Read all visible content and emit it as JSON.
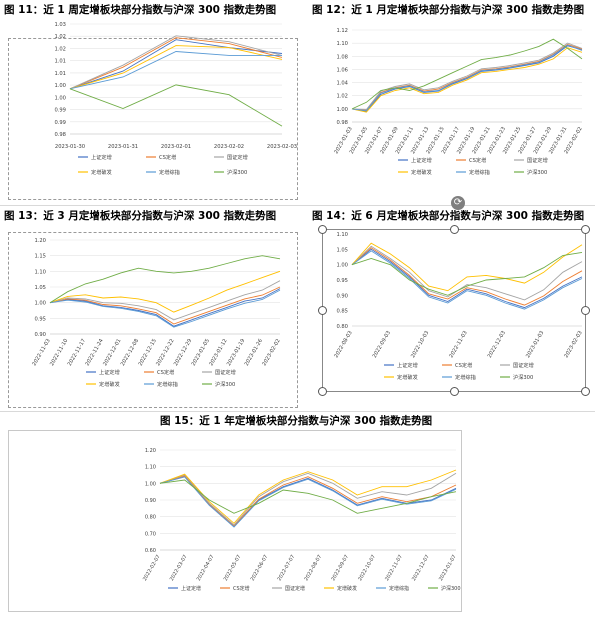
{
  "legend_labels": [
    "上证定增",
    "CS定增",
    "国证定增",
    "定增破发",
    "定增综指",
    "沪深300"
  ],
  "series_colors": [
    "#4472c4",
    "#ed7d31",
    "#a5a5a5",
    "#ffc000",
    "#5b9bd5",
    "#70ad47"
  ],
  "chart_data": [
    {
      "id": "fig11",
      "type": "line",
      "title": "图 11：近 1 周定增板块部分指数与沪深 300 指数走势图",
      "x": [
        "2023-01-30",
        "2023-01-31",
        "2023-02-01",
        "2023-02-02",
        "2023-02-03"
      ],
      "xlabels": [
        "2023-01-30",
        "2023-01-31",
        "2023-02-01",
        "2023-02-02",
        "2023-02-03"
      ],
      "yticks": [
        "1.03",
        "1.02",
        "1.02",
        "1.01",
        "1.01",
        "1.00",
        "1.00",
        "0.99",
        "0.99",
        "0.98"
      ],
      "ylim": [
        0.977,
        1.033
      ],
      "series": [
        {
          "name": "上证定增",
          "values": [
            1.0,
            1.009,
            1.025,
            1.021,
            1.018
          ]
        },
        {
          "name": "CS定增",
          "values": [
            1.0,
            1.011,
            1.026,
            1.023,
            1.016
          ]
        },
        {
          "name": "国证定增",
          "values": [
            1.0,
            1.012,
            1.027,
            1.024,
            1.017
          ]
        },
        {
          "name": "定增破发",
          "values": [
            1.0,
            1.008,
            1.022,
            1.021,
            1.015
          ]
        },
        {
          "name": "定增综指",
          "values": [
            1.0,
            1.006,
            1.019,
            1.017,
            1.017
          ]
        },
        {
          "name": "沪深300",
          "values": [
            1.0,
            0.99,
            1.002,
            0.997,
            0.981
          ]
        }
      ]
    },
    {
      "id": "fig12",
      "type": "line",
      "title": "图 12：近 1 月定增板块部分指数与沪深 300 指数走势图",
      "x": [
        "2023-01-03",
        "2023-01-05",
        "2023-01-07",
        "2023-01-09",
        "2023-01-11",
        "2023-01-13",
        "2023-01-15",
        "2023-01-17",
        "2023-01-19",
        "2023-01-21",
        "2023-01-23",
        "2023-01-25",
        "2023-01-27",
        "2023-01-29",
        "2023-01-31",
        "2023-02-02",
        "2023-02-03"
      ],
      "xlabels": [
        "2023-01-03",
        "2023-01-05",
        "2023-01-07",
        "2023-01-09",
        "2023-01-11",
        "2023-01-13",
        "2023-01-15",
        "2023-01-17",
        "2023-01-19",
        "2023-01-21",
        "2023-01-23",
        "2023-01-25",
        "2023-01-27",
        "2023-01-29",
        "2023-01-31",
        "2023-02-02"
      ],
      "yticks": [
        "1.12",
        "1.10",
        "1.08",
        "1.06",
        "1.04",
        "1.02",
        "1.00",
        "0.98"
      ],
      "ylim": [
        0.98,
        1.12
      ],
      "series": [
        {
          "name": "上证定增",
          "values": [
            1.0,
            0.996,
            1.022,
            1.03,
            1.034,
            1.025,
            1.027,
            1.038,
            1.046,
            1.057,
            1.059,
            1.062,
            1.066,
            1.07,
            1.08,
            1.096,
            1.09
          ]
        },
        {
          "name": "CS定增",
          "values": [
            1.0,
            0.998,
            1.025,
            1.032,
            1.036,
            1.027,
            1.03,
            1.04,
            1.048,
            1.059,
            1.061,
            1.064,
            1.068,
            1.072,
            1.083,
            1.098,
            1.091
          ]
        },
        {
          "name": "国证定增",
          "values": [
            1.0,
            0.999,
            1.027,
            1.034,
            1.038,
            1.029,
            1.032,
            1.042,
            1.05,
            1.061,
            1.063,
            1.066,
            1.07,
            1.074,
            1.085,
            1.1,
            1.092
          ]
        },
        {
          "name": "定增破发",
          "values": [
            1.0,
            0.995,
            1.02,
            1.028,
            1.032,
            1.023,
            1.025,
            1.036,
            1.044,
            1.055,
            1.057,
            1.06,
            1.063,
            1.068,
            1.076,
            1.093,
            1.086
          ]
        },
        {
          "name": "定增综指",
          "values": [
            1.0,
            0.997,
            1.024,
            1.031,
            1.035,
            1.026,
            1.028,
            1.039,
            1.047,
            1.058,
            1.06,
            1.063,
            1.067,
            1.071,
            1.082,
            1.097,
            1.089
          ]
        },
        {
          "name": "沪深300",
          "values": [
            1.0,
            1.01,
            1.028,
            1.032,
            1.028,
            1.035,
            1.045,
            1.055,
            1.065,
            1.075,
            1.078,
            1.082,
            1.088,
            1.095,
            1.106,
            1.092,
            1.076
          ]
        }
      ]
    },
    {
      "id": "fig13",
      "type": "line",
      "title": "图 13：近 3 月定增板块部分指数与沪深 300 指数走势图",
      "x": [
        "2022-11-03",
        "2022-11-10",
        "2022-11-17",
        "2022-11-24",
        "2022-12-01",
        "2022-12-08",
        "2022-12-15",
        "2022-12-22",
        "2022-12-29",
        "2023-01-05",
        "2023-01-12",
        "2023-01-19",
        "2023-01-26",
        "2023-02-02"
      ],
      "xlabels": [
        "2022-11-03",
        "2022-11-10",
        "2022-11-17",
        "2022-11-24",
        "2022-12-01",
        "2022-12-08",
        "2022-12-15",
        "2022-12-22",
        "2022-12-29",
        "2023-01-05",
        "2023-01-12",
        "2023-01-19",
        "2023-01-26",
        "2023-02-02"
      ],
      "yticks": [
        "1.20",
        "1.15",
        "1.10",
        "1.05",
        "1.00",
        "0.95",
        "0.90"
      ],
      "ylim": [
        0.9,
        1.2
      ],
      "series": [
        {
          "name": "上证定增",
          "values": [
            1.0,
            1.01,
            1.005,
            0.99,
            0.985,
            0.975,
            0.962,
            0.925,
            0.945,
            0.965,
            0.985,
            1.005,
            1.015,
            1.045
          ]
        },
        {
          "name": "CS定增",
          "values": [
            1.0,
            1.012,
            1.008,
            0.994,
            0.99,
            0.98,
            0.968,
            0.932,
            0.952,
            0.972,
            0.992,
            1.012,
            1.024,
            1.05
          ]
        },
        {
          "name": "国证定增",
          "values": [
            1.0,
            1.015,
            1.012,
            1.0,
            0.998,
            0.99,
            0.978,
            0.945,
            0.965,
            0.985,
            1.005,
            1.025,
            1.04,
            1.07
          ]
        },
        {
          "name": "定增破发",
          "values": [
            1.0,
            1.02,
            1.025,
            1.015,
            1.018,
            1.012,
            1.0,
            0.97,
            0.992,
            1.015,
            1.04,
            1.06,
            1.08,
            1.1
          ]
        },
        {
          "name": "定增综指",
          "values": [
            1.0,
            1.008,
            1.002,
            0.988,
            0.982,
            0.972,
            0.958,
            0.922,
            0.94,
            0.96,
            0.98,
            0.998,
            1.01,
            1.04
          ]
        },
        {
          "name": "沪深300",
          "values": [
            1.0,
            1.035,
            1.06,
            1.075,
            1.095,
            1.11,
            1.1,
            1.095,
            1.1,
            1.11,
            1.125,
            1.14,
            1.15,
            1.14
          ]
        }
      ]
    },
    {
      "id": "fig14",
      "type": "line",
      "title": "图 14：近 6 月定增板块部分指数与沪深 300 指数走势图",
      "x": [
        "2022-08-03",
        "2022-08-20",
        "2022-09-03",
        "2022-09-20",
        "2022-10-03",
        "2022-10-20",
        "2022-11-03",
        "2022-11-20",
        "2022-12-03",
        "2022-12-20",
        "2023-01-03",
        "2023-01-20",
        "2023-02-03"
      ],
      "xlabels": [
        "2022-08-03",
        "2022-09-03",
        "2022-10-03",
        "2022-11-03",
        "2022-12-03",
        "2023-01-03",
        "2023-02-03"
      ],
      "yticks": [
        "1.10",
        "1.05",
        "1.00",
        "0.95",
        "0.90",
        "0.85",
        "0.80"
      ],
      "ylim": [
        0.8,
        1.1
      ],
      "series": [
        {
          "name": "上证定增",
          "values": [
            1.0,
            1.05,
            1.01,
            0.96,
            0.9,
            0.88,
            0.92,
            0.905,
            0.88,
            0.86,
            0.89,
            0.93,
            0.96
          ]
        },
        {
          "name": "CS定增",
          "values": [
            1.0,
            1.055,
            1.015,
            0.965,
            0.905,
            0.888,
            0.925,
            0.912,
            0.888,
            0.868,
            0.898,
            0.945,
            0.98
          ]
        },
        {
          "name": "国证定增",
          "values": [
            1.0,
            1.06,
            1.02,
            0.975,
            0.915,
            0.895,
            0.935,
            0.925,
            0.905,
            0.885,
            0.918,
            0.975,
            1.01
          ]
        },
        {
          "name": "定增破发",
          "values": [
            1.0,
            1.07,
            1.035,
            0.99,
            0.93,
            0.915,
            0.96,
            0.965,
            0.955,
            0.94,
            0.975,
            1.025,
            1.065
          ]
        },
        {
          "name": "定增综指",
          "values": [
            1.0,
            1.045,
            1.005,
            0.955,
            0.895,
            0.875,
            0.915,
            0.9,
            0.875,
            0.855,
            0.885,
            0.925,
            0.955
          ]
        },
        {
          "name": "沪深300",
          "values": [
            1.0,
            1.02,
            1.0,
            0.95,
            0.92,
            0.9,
            0.93,
            0.95,
            0.955,
            0.96,
            0.99,
            1.03,
            1.04
          ]
        }
      ]
    },
    {
      "id": "fig15",
      "type": "line",
      "title": "图 15：近 1 年定增板块部分指数与沪深 300 指数走势图",
      "x": [
        "2022-02-07",
        "2022-03-07",
        "2022-04-07",
        "2022-05-07",
        "2022-06-07",
        "2022-07-07",
        "2022-08-07",
        "2022-09-07",
        "2022-10-07",
        "2022-11-07",
        "2022-12-07",
        "2023-01-07",
        "2023-02-07"
      ],
      "xlabels": [
        "2022-02-07",
        "2022-03-07",
        "2022-04-07",
        "2022-05-07",
        "2022-06-07",
        "2022-07-07",
        "2022-08-07",
        "2022-09-07",
        "2022-10-07",
        "2022-11-07",
        "2022-12-07",
        "2023-01-07"
      ],
      "yticks": [
        "1.20",
        "1.10",
        "1.00",
        "0.90",
        "0.80",
        "0.70",
        "0.60"
      ],
      "ylim": [
        0.6,
        1.2
      ],
      "series": [
        {
          "name": "上证定增",
          "values": [
            1.0,
            1.04,
            0.87,
            0.74,
            0.9,
            0.98,
            1.03,
            0.96,
            0.87,
            0.91,
            0.88,
            0.9,
            0.97
          ]
        },
        {
          "name": "CS定增",
          "values": [
            1.0,
            1.045,
            0.875,
            0.745,
            0.905,
            0.99,
            1.04,
            0.97,
            0.88,
            0.92,
            0.89,
            0.92,
            0.99
          ]
        },
        {
          "name": "国证定增",
          "values": [
            1.0,
            1.05,
            0.88,
            0.75,
            0.92,
            1.01,
            1.06,
            1.0,
            0.91,
            0.95,
            0.93,
            0.97,
            1.06
          ]
        },
        {
          "name": "定增破发",
          "values": [
            1.0,
            1.055,
            0.89,
            0.76,
            0.93,
            1.02,
            1.07,
            1.02,
            0.93,
            0.98,
            0.98,
            1.02,
            1.08
          ]
        },
        {
          "name": "定增综指",
          "values": [
            1.0,
            1.038,
            0.868,
            0.738,
            0.895,
            0.975,
            1.025,
            0.955,
            0.865,
            0.905,
            0.875,
            0.895,
            0.965
          ]
        },
        {
          "name": "沪深300",
          "values": [
            1.0,
            1.02,
            0.9,
            0.82,
            0.88,
            0.96,
            0.94,
            0.9,
            0.82,
            0.85,
            0.88,
            0.92,
            0.95
          ]
        }
      ]
    }
  ]
}
